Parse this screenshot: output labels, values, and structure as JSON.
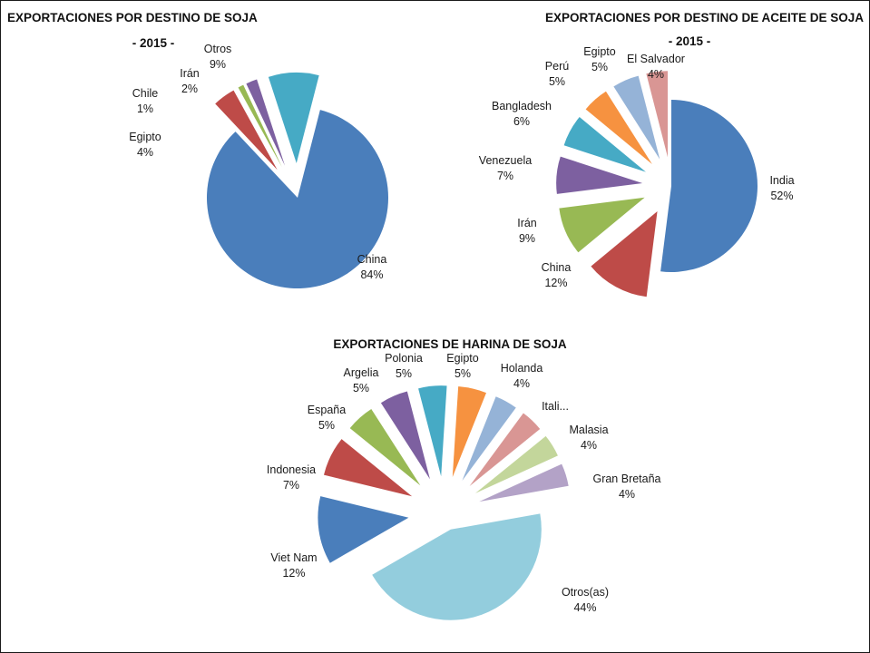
{
  "chart_data": [
    {
      "type": "pie",
      "title": "EXPORTACIONES POR DESTINO DE SOJA",
      "subtitle": "- 2015 -",
      "slices": [
        {
          "label": "China",
          "value": 84,
          "value_label": "84%",
          "color": "#4a7ebb"
        },
        {
          "label": "Egipto",
          "value": 4,
          "value_label": "4%",
          "color": "#be4b48"
        },
        {
          "label": "Chile",
          "value": 1,
          "value_label": "1%",
          "color": "#98b954"
        },
        {
          "label": "Irán",
          "value": 2,
          "value_label": "2%",
          "color": "#7d60a0"
        },
        {
          "label": "Otros",
          "value": 9,
          "value_label": "9%",
          "color": "#46aac5"
        }
      ]
    },
    {
      "type": "pie",
      "title": "EXPORTACIONES POR DESTINO DE ACEITE DE SOJA",
      "subtitle": "- 2015 -",
      "slices": [
        {
          "label": "India",
          "value": 52,
          "value_label": "52%",
          "color": "#4a7ebb"
        },
        {
          "label": "China",
          "value": 12,
          "value_label": "12%",
          "color": "#be4b48"
        },
        {
          "label": "Irán",
          "value": 9,
          "value_label": "9%",
          "color": "#98b954"
        },
        {
          "label": "Venezuela",
          "value": 7,
          "value_label": "7%",
          "color": "#7d60a0"
        },
        {
          "label": "Bangladesh",
          "value": 6,
          "value_label": "6%",
          "color": "#46aac5"
        },
        {
          "label": "Perú",
          "value": 5,
          "value_label": "5%",
          "color": "#f69240"
        },
        {
          "label": "Egipto",
          "value": 5,
          "value_label": "5%",
          "color": "#95b3d7"
        },
        {
          "label": "El Salvador",
          "value": 4,
          "value_label": "4%",
          "color": "#d99694"
        }
      ]
    },
    {
      "type": "pie",
      "title": "EXPORTACIONES DE HARINA DE SOJA",
      "subtitle": "",
      "slices": [
        {
          "label": "Otros(as)",
          "value": 44,
          "value_label": "44%",
          "color": "#93cddd"
        },
        {
          "label": "Viet Nam",
          "value": 12,
          "value_label": "12%",
          "color": "#4a7ebb"
        },
        {
          "label": "Indonesia",
          "value": 7,
          "value_label": "7%",
          "color": "#be4b48"
        },
        {
          "label": "España",
          "value": 5,
          "value_label": "5%",
          "color": "#98b954"
        },
        {
          "label": "Argelia",
          "value": 5,
          "value_label": "5%",
          "color": "#7d60a0"
        },
        {
          "label": "Polonia",
          "value": 5,
          "value_label": "5%",
          "color": "#46aac5"
        },
        {
          "label": "Egipto",
          "value": 5,
          "value_label": "5%",
          "color": "#f69240"
        },
        {
          "label": "Holanda",
          "value": 4,
          "value_label": "4%",
          "color": "#95b3d7"
        },
        {
          "label": "Itali...",
          "value": 4,
          "value_label": "",
          "color": "#d99694"
        },
        {
          "label": "Malasia",
          "value": 4,
          "value_label": "4%",
          "color": "#c3d69b"
        },
        {
          "label": "Gran Bretaña",
          "value": 4,
          "value_label": "4%",
          "color": "#b3a2c7"
        }
      ]
    }
  ]
}
